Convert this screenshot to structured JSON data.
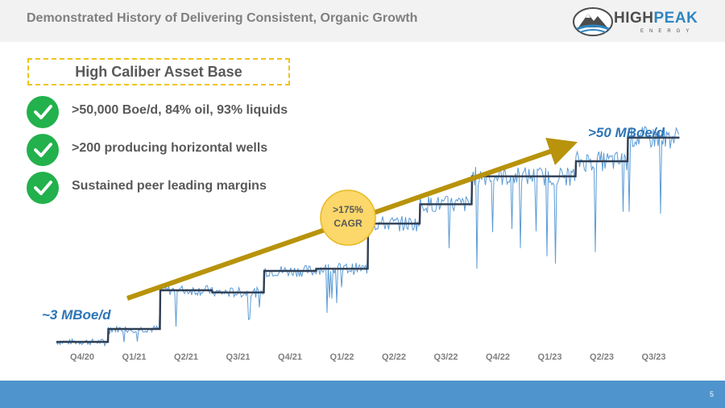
{
  "header": {
    "title": "Demonstrated History of Delivering Consistent, Organic Growth"
  },
  "logo": {
    "word_part1": "HIGH",
    "word_part2": "PEAK",
    "subtext": "ENERGY"
  },
  "asset_box": {
    "label": "High Caliber Asset Base"
  },
  "bullets": [
    {
      "text": ">50,000 Boe/d, 84% oil, 93% liquids",
      "icon": "checkmark-icon"
    },
    {
      "text": ">200 producing horizontal wells",
      "icon": "checkmark-icon"
    },
    {
      "text": "Sustained peer leading margins",
      "icon": "checkmark-icon"
    }
  ],
  "annotations": {
    "start": "~3 MBoe/d",
    "end": ">50 MBoe/d",
    "cagr_line1": ">175%",
    "cagr_line2": "CAGR"
  },
  "colors": {
    "daily_line": "#5b9bd5",
    "step_line": "#2f3e53",
    "arrow": "#b8930b",
    "cagr_circle": "#fcd76a",
    "check": "#22b14c",
    "footer": "#4f94cd"
  },
  "footer": {
    "page_number": "5"
  },
  "chart_data": {
    "type": "line",
    "categories": [
      "Q4/20",
      "Q1/21",
      "Q2/21",
      "Q3/21",
      "Q4/21",
      "Q1/22",
      "Q2/22",
      "Q3/22",
      "Q4/22",
      "Q1/23",
      "Q2/23",
      "Q3/23"
    ],
    "series": [
      {
        "name": "",
        "values": [
          3.0,
          6.0,
          15.0,
          14.5,
          19.5,
          20.0,
          30.5,
          35.0,
          41.5,
          41.5,
          45.0,
          50.5
        ]
      }
    ],
    "ylim": [
      0,
      60
    ],
    "grid": false
  }
}
